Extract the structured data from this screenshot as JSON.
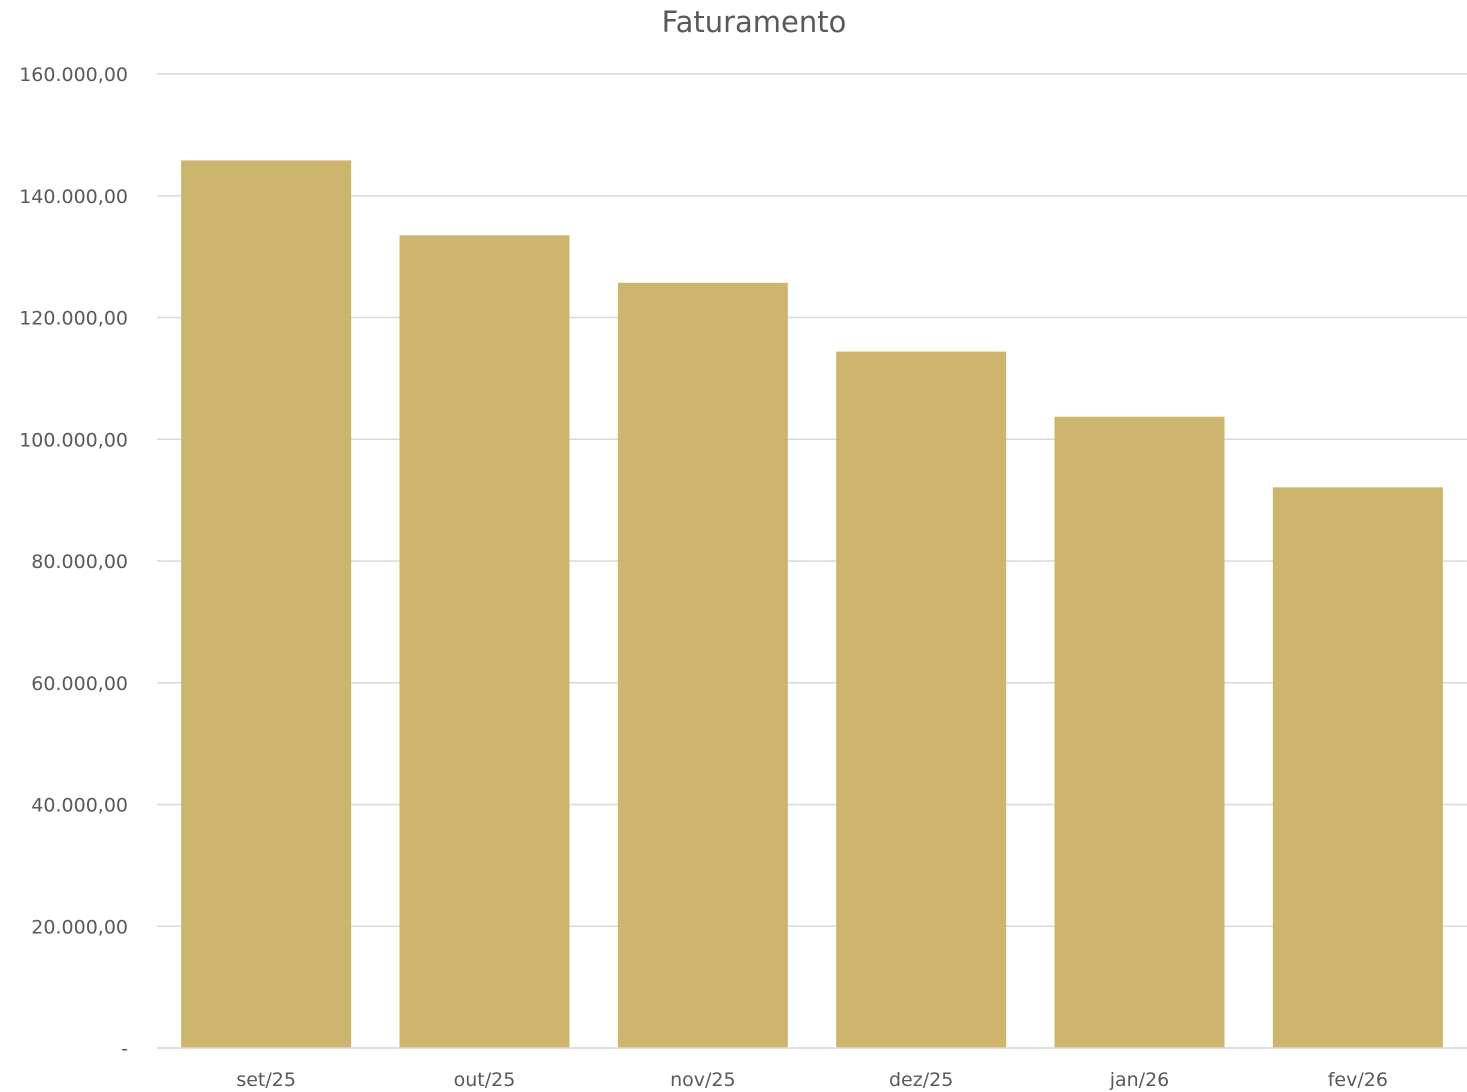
{
  "chart_data": {
    "type": "bar",
    "title": "Faturamento",
    "xlabel": "",
    "ylabel": "",
    "categories": [
      "set/25",
      "out/25",
      "nov/25",
      "dez/25",
      "jan/26",
      "fev/26"
    ],
    "values": [
      145800,
      133500,
      125700,
      114400,
      103700,
      92100
    ],
    "ylim": [
      0,
      160000
    ],
    "y_ticks": [
      {
        "value": 0,
        "label": "-"
      },
      {
        "value": 20000,
        "label": "20.000,00"
      },
      {
        "value": 40000,
        "label": "40.000,00"
      },
      {
        "value": 60000,
        "label": "60.000,00"
      },
      {
        "value": 80000,
        "label": "80.000,00"
      },
      {
        "value": 100000,
        "label": "100.000,00"
      },
      {
        "value": 120000,
        "label": "120.000,00"
      },
      {
        "value": 140000,
        "label": "140.000,00"
      },
      {
        "value": 160000,
        "label": "160.000,00"
      }
    ],
    "grid": true,
    "legend": "none",
    "bar_color": "#CEB56D",
    "grid_color": "#D9D9D9",
    "text_color": "#595959"
  }
}
